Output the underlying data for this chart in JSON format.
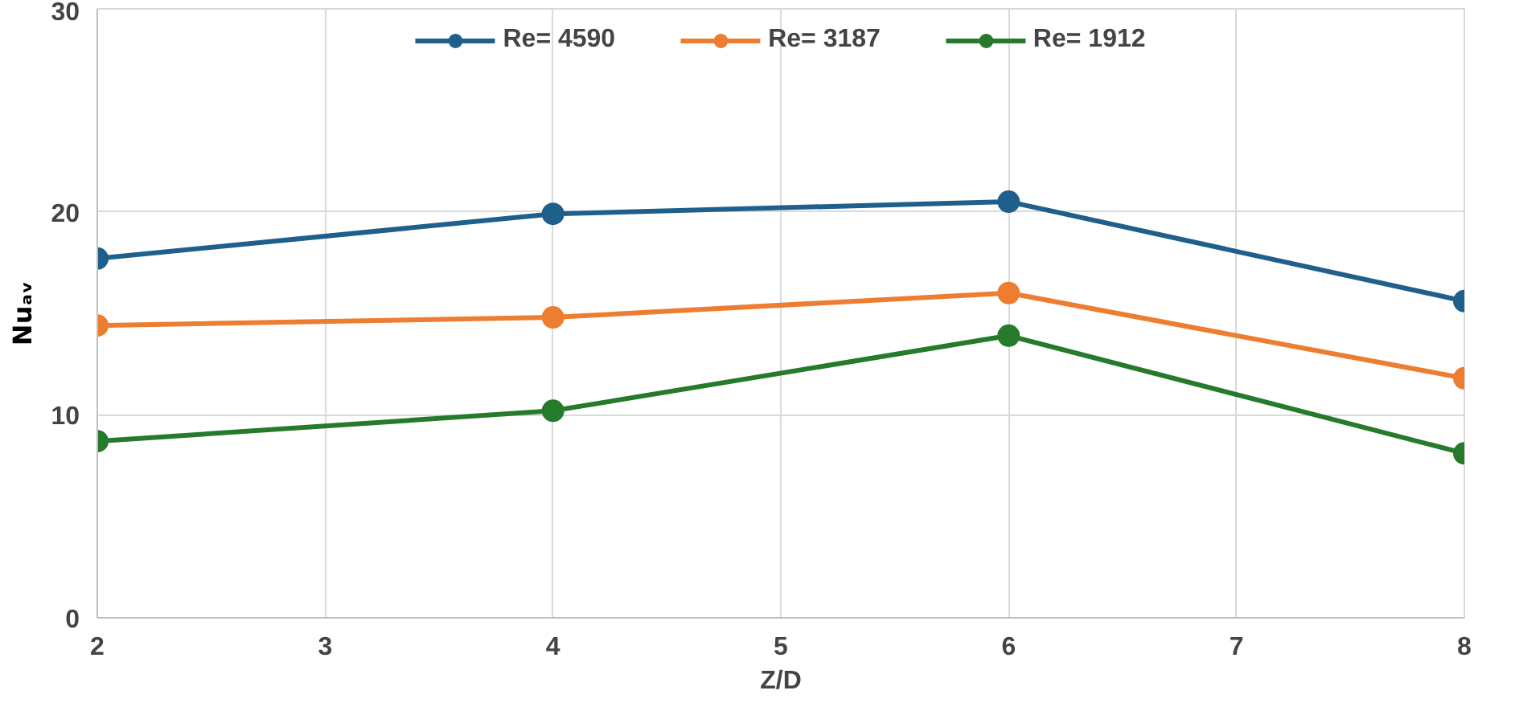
{
  "chart_data": {
    "type": "line",
    "xlabel": "Z/D",
    "ylabel": "Nuₐᵥ",
    "x": [
      2,
      4,
      6,
      8
    ],
    "series": [
      {
        "name": "Re= 4590",
        "color": "#1f5f8b",
        "values": [
          17.7,
          19.9,
          20.5,
          15.6
        ]
      },
      {
        "name": "Re= 3187",
        "color": "#ed7d31",
        "values": [
          14.4,
          14.8,
          16.0,
          11.8
        ]
      },
      {
        "name": "Re= 1912",
        "color": "#267a2c",
        "values": [
          8.7,
          10.2,
          13.9,
          8.1
        ]
      }
    ],
    "xlim": [
      2,
      8
    ],
    "xticks": [
      2,
      3,
      4,
      5,
      6,
      7,
      8
    ],
    "ylim": [
      0,
      30
    ],
    "yticks": [
      0,
      10,
      20,
      30
    ],
    "grid": true,
    "legend": "top",
    "marker": "circle",
    "line_style": "solid"
  }
}
